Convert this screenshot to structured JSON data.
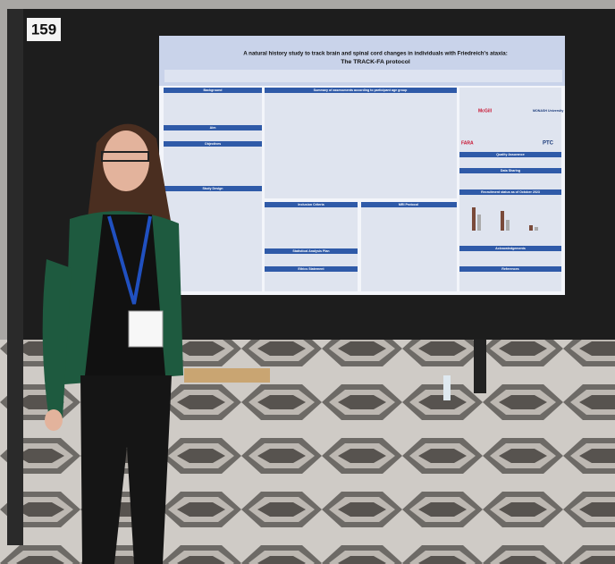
{
  "booth_number": "159",
  "poster": {
    "title_line1": "A natural history study to track brain and spinal cord changes in individuals with Friedreich's ataxia:",
    "title_line2": "The TRACK-FA protocol",
    "sections": [
      "Background",
      "Aim",
      "Objectives",
      "Study Design",
      "Summary of assessments according to participant age group",
      "Inclusion Criteria",
      "MRI Protocol",
      "Statistical Analysis Plan",
      "Ethics Statement",
      "Quality Assurance",
      "Data Sharing",
      "Recruitment status as of October 2023",
      "Acknowledgements",
      "References"
    ],
    "logos": [
      "McGill",
      "MONASH University",
      "FARA",
      "PTC"
    ]
  }
}
